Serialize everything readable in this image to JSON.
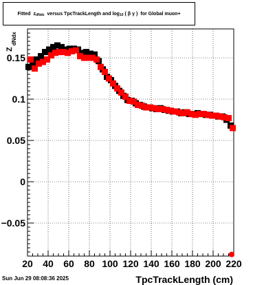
{
  "footer_date": "Sun Jun 29 08:08:36 2025",
  "title": {
    "prefix": "Fitted",
    "z_symbol": "z",
    "z_subscript": "dNdx",
    "middle": "versus TpcTrackLength and log",
    "log_subscript": "10",
    "open_paren": "(",
    "beta": "β",
    "gamma": "γ",
    "close_paren": ")",
    "suffix": "for Global muon+"
  },
  "chart_data": {
    "type": "scatter",
    "xlabel": "TpcTrackLength (cm)",
    "ylabel_main": "Z",
    "ylabel_sub": "dNdx",
    "xlim": [
      20,
      220
    ],
    "ylim": [
      -0.09,
      0.185
    ],
    "xticks": [
      20,
      40,
      60,
      80,
      100,
      120,
      140,
      160,
      180,
      200,
      220
    ],
    "xtick_labels": [
      "20",
      "40",
      "60",
      "80",
      "100",
      "120",
      "140",
      "160",
      "180",
      "200",
      "220"
    ],
    "yticks": [
      -0.05,
      0,
      0.05,
      0.1,
      0.15
    ],
    "ytick_labels": [
      "−0.05",
      "0",
      "0.05",
      "0.1",
      "0.15"
    ],
    "grid": true,
    "colors": {
      "black_series": "#000000",
      "red_series": "#ff0000"
    },
    "series": [
      {
        "marker": "square",
        "color": "#000000",
        "x": [
          21,
          25,
          29,
          33,
          37,
          41,
          45,
          49,
          53,
          57,
          61,
          65,
          69,
          73,
          77,
          81,
          85,
          89,
          93,
          97,
          101,
          105,
          109,
          113,
          117,
          121,
          125,
          129,
          133,
          137,
          141,
          145,
          149,
          153,
          157,
          161,
          165,
          169,
          173,
          177,
          181,
          185,
          189,
          193,
          197,
          201,
          205,
          209,
          213,
          217
        ],
        "y": [
          0.139,
          0.141,
          0.148,
          0.152,
          0.157,
          0.16,
          0.163,
          0.165,
          0.163,
          0.16,
          0.161,
          0.161,
          0.16,
          0.156,
          0.157,
          0.155,
          0.154,
          0.146,
          0.136,
          0.127,
          0.123,
          0.116,
          0.11,
          0.104,
          0.099,
          0.098,
          0.095,
          0.093,
          0.091,
          0.09,
          0.089,
          0.088,
          0.089,
          0.087,
          0.086,
          0.085,
          0.085,
          0.083,
          0.084,
          0.082,
          0.082,
          0.083,
          0.082,
          0.081,
          0.081,
          0.08,
          0.079,
          0.079,
          0.075,
          0.068
        ]
      },
      {
        "marker": "square",
        "color": "#ff0000",
        "x": [
          23,
          27,
          31,
          35,
          39,
          43,
          47,
          51,
          55,
          59,
          63,
          67,
          71,
          75,
          79,
          83,
          87,
          91,
          95,
          99,
          103,
          107,
          111,
          115,
          119,
          123,
          127,
          131,
          135,
          139,
          143,
          147,
          151,
          155,
          159,
          163,
          167,
          171,
          175,
          179,
          183,
          187,
          191,
          195,
          199,
          203,
          207,
          211,
          215,
          219
        ],
        "y": [
          0.148,
          0.137,
          0.143,
          0.145,
          0.148,
          0.153,
          0.156,
          0.157,
          0.157,
          0.156,
          0.158,
          0.159,
          0.152,
          0.15,
          0.15,
          0.15,
          0.148,
          0.139,
          0.133,
          0.125,
          0.119,
          0.113,
          0.108,
          0.103,
          0.098,
          0.097,
          0.093,
          0.092,
          0.09,
          0.09,
          0.089,
          0.088,
          0.088,
          0.087,
          0.086,
          0.085,
          0.084,
          0.083,
          0.084,
          0.082,
          0.081,
          0.082,
          0.082,
          0.081,
          0.08,
          0.08,
          0.079,
          0.078,
          0.077,
          0.065
        ]
      }
    ],
    "fit_point": {
      "x": 218,
      "y": -0.088,
      "color": "#ff0000"
    }
  }
}
